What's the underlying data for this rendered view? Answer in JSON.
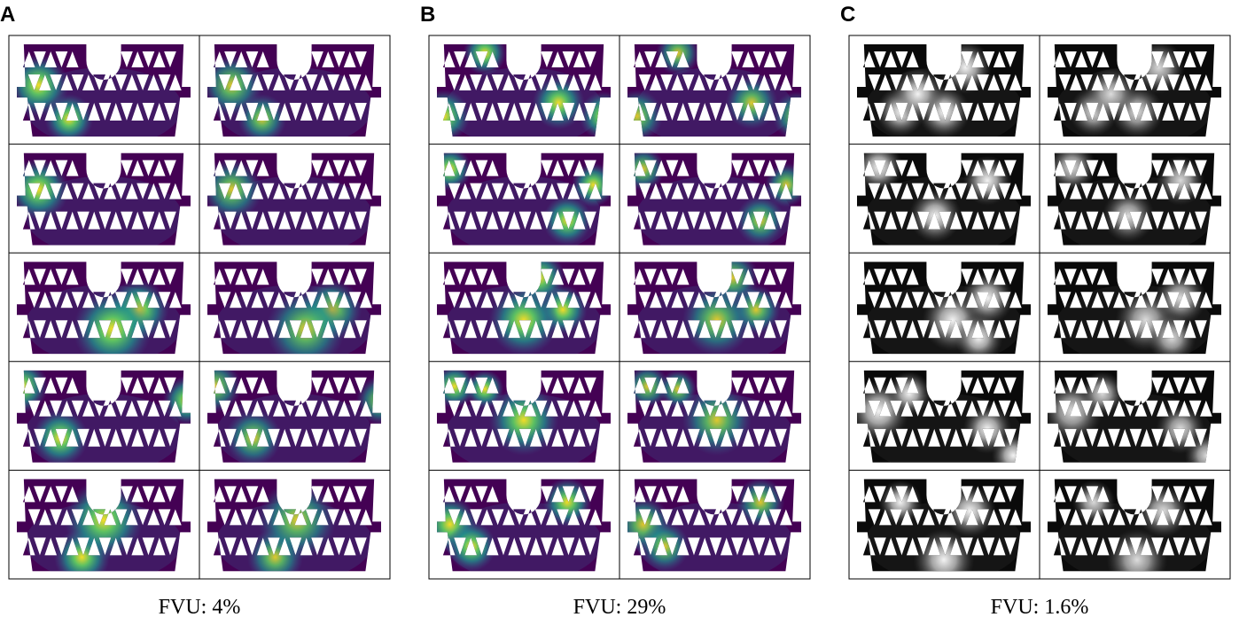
{
  "panels": [
    {
      "label": "A",
      "caption": "FVU: 4%"
    },
    {
      "label": "B",
      "caption": "FVU: 29%"
    },
    {
      "label": "C",
      "caption": "FVU: 1.6%"
    }
  ]
}
